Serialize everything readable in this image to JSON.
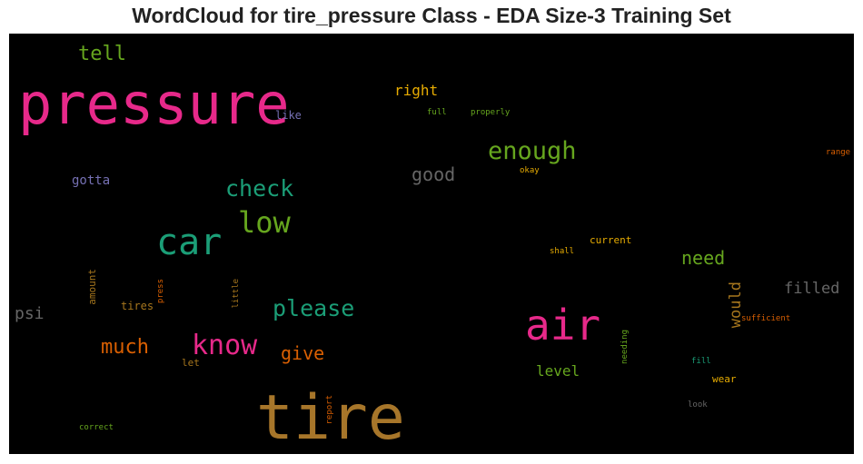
{
  "title": "WordCloud for tire_pressure Class - EDA Size-3 Training Set",
  "chart_data": {
    "type": "wordcloud",
    "background": "#000000",
    "words": [
      {
        "text": "tire",
        "color": "#a7762a"
      },
      {
        "text": "pressure",
        "color": "#e7298a"
      },
      {
        "text": "air",
        "color": "#e7298a"
      },
      {
        "text": "car",
        "color": "#1b9e77"
      },
      {
        "text": "low",
        "color": "#66a61e"
      },
      {
        "text": "know",
        "color": "#e7298a"
      },
      {
        "text": "enough",
        "color": "#66a61e"
      },
      {
        "text": "check",
        "color": "#1b9e77"
      },
      {
        "text": "please",
        "color": "#1b9e77"
      },
      {
        "text": "much",
        "color": "#d95f02"
      },
      {
        "text": "give",
        "color": "#d95f02"
      },
      {
        "text": "tell",
        "color": "#66a61e"
      },
      {
        "text": "need",
        "color": "#66a61e"
      },
      {
        "text": "good",
        "color": "#666666"
      },
      {
        "text": "filled",
        "color": "#666666"
      },
      {
        "text": "right",
        "color": "#e6ab02"
      },
      {
        "text": "psi",
        "color": "#666666"
      },
      {
        "text": "would",
        "color": "#a6761d"
      },
      {
        "text": "level",
        "color": "#66a61e"
      },
      {
        "text": "gotta",
        "color": "#7570b3"
      },
      {
        "text": "like",
        "color": "#7570b3"
      },
      {
        "text": "tires",
        "color": "#a6761d"
      },
      {
        "text": "amount",
        "color": "#a6761d"
      },
      {
        "text": "current",
        "color": "#e6ab02"
      },
      {
        "text": "wear",
        "color": "#e6ab02"
      },
      {
        "text": "let",
        "color": "#a6761d"
      },
      {
        "text": "sufficient",
        "color": "#d95f02"
      },
      {
        "text": "full",
        "color": "#66a61e"
      },
      {
        "text": "properly",
        "color": "#66a61e"
      },
      {
        "text": "okay",
        "color": "#e6ab02"
      },
      {
        "text": "range",
        "color": "#d95f02"
      },
      {
        "text": "shall",
        "color": "#e6ab02"
      },
      {
        "text": "press",
        "color": "#d95f02"
      },
      {
        "text": "little",
        "color": "#a6761d"
      },
      {
        "text": "needing",
        "color": "#66a61e"
      },
      {
        "text": "fill",
        "color": "#1b9e77"
      },
      {
        "text": "report",
        "color": "#d95f02"
      },
      {
        "text": "look",
        "color": "#666666"
      },
      {
        "text": "correct",
        "color": "#66a61e"
      }
    ]
  }
}
